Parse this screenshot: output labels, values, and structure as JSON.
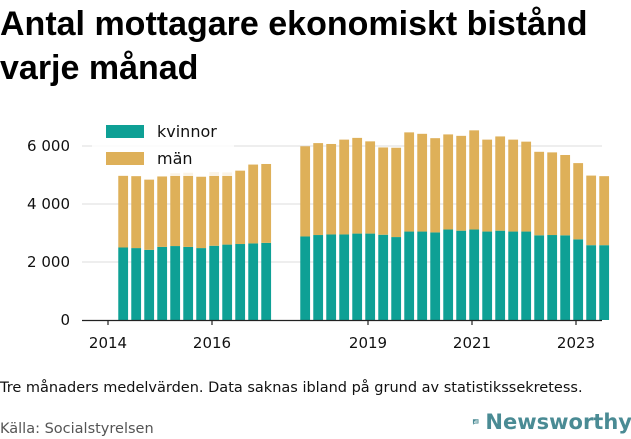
{
  "title": "Antal mottagare ekonomiskt bistånd varje månad",
  "footer": {
    "note": "Tre månaders medelvärden. Data saknas ibland på grund av statistikssekretess.",
    "source": "Källa: Socialstyrelsen",
    "brand": "Newsworthy"
  },
  "colors": {
    "kvinnor": "#0ea095",
    "man": "#deb059",
    "grid": "#dddddd",
    "brand": "#4a8b94"
  },
  "chart_data": {
    "type": "bar",
    "stacked": true,
    "x_ticks": [
      "2014",
      "2016",
      "2019",
      "2021",
      "2023"
    ],
    "y_ticks": [
      "0",
      "2 000",
      "4 000",
      "6 000"
    ],
    "ylim": [
      0,
      6600
    ],
    "legend_position": "top-left",
    "grid": true,
    "categories": [
      "2014-03",
      "2014-06",
      "2014-09",
      "2014-12",
      "2015-03",
      "2015-06",
      "2015-09",
      "2015-12",
      "2016-03",
      "2016-06",
      "2016-09",
      "2016-12",
      "2017-09",
      "2017-12",
      "2018-03",
      "2018-06",
      "2018-09",
      "2018-12",
      "2019-03",
      "2019-06",
      "2019-09",
      "2019-12",
      "2020-03",
      "2020-06",
      "2020-09",
      "2020-12",
      "2021-03",
      "2021-06",
      "2021-09",
      "2021-12",
      "2022-03",
      "2022-06",
      "2022-09",
      "2022-12",
      "2023-03",
      "2023-06"
    ],
    "series": [
      {
        "name": "kvinnor",
        "values": [
          2500,
          2480,
          2420,
          2520,
          2550,
          2520,
          2480,
          2560,
          2600,
          2620,
          2640,
          2660,
          2880,
          2930,
          2950,
          2950,
          2980,
          2980,
          2940,
          2860,
          3050,
          3050,
          3020,
          3120,
          3080,
          3120,
          3050,
          3080,
          3050,
          3050,
          2920,
          2930,
          2920,
          2780,
          2580,
          2580
        ]
      },
      {
        "name": "män",
        "values": [
          2500,
          2480,
          2420,
          2430,
          2510,
          2560,
          2460,
          2540,
          2490,
          2530,
          2720,
          2720,
          3110,
          3170,
          3120,
          3270,
          3300,
          3180,
          3010,
          3080,
          3420,
          3370,
          3250,
          3280,
          3270,
          3420,
          3170,
          3250,
          3170,
          3100,
          2880,
          2850,
          2770,
          2630,
          2400,
          2380
        ]
      }
    ]
  }
}
